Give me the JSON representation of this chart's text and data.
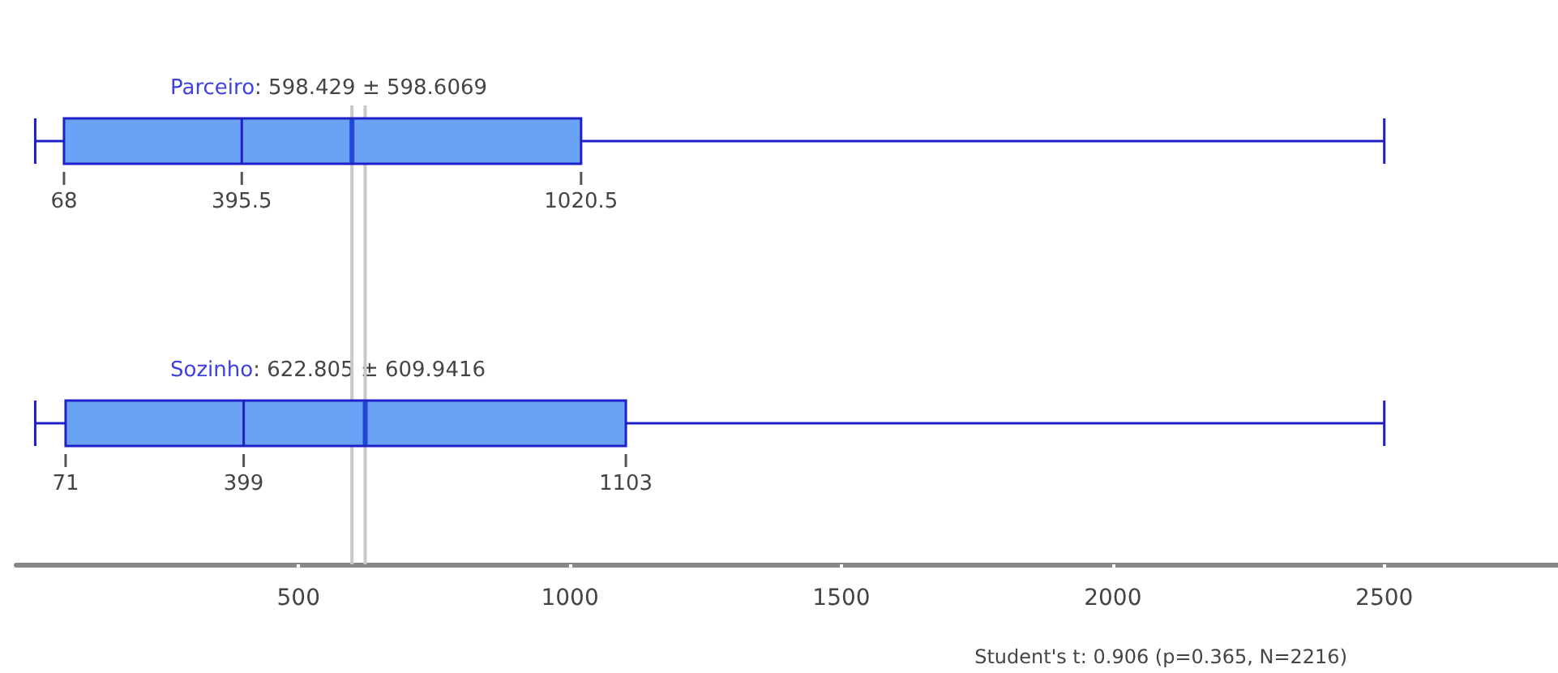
{
  "chart_data": {
    "type": "box",
    "orientation": "horizontal",
    "categories": [
      "Parceiro",
      "Sozinho"
    ],
    "boxes": [
      {
        "low": 15,
        "q1": 68,
        "median": 395.5,
        "q3": 1020.5,
        "high": 2500,
        "mean": 598.429
      },
      {
        "low": 15,
        "q1": 71,
        "median": 399,
        "q3": 1103,
        "high": 2500,
        "mean": 622.805
      }
    ],
    "xlim": [
      -20,
      2820
    ],
    "xticks": [
      500,
      1000,
      1500,
      2000,
      2500
    ],
    "grid": false,
    "ref_lines": [
      {
        "axis": "x",
        "value": 598.429,
        "color": "#c8c8c8"
      },
      {
        "axis": "x",
        "value": 622.805,
        "color": "#c8c8c8"
      }
    ],
    "annotations": [
      ": 598.429 ± 598.6069",
      ": 622.805 ± 609.9416",
      "Student's t: 0.906 (p=0.365, N=2216)",
      "68",
      "395.5",
      "1020.5",
      "71",
      "399",
      "1103"
    ]
  }
}
